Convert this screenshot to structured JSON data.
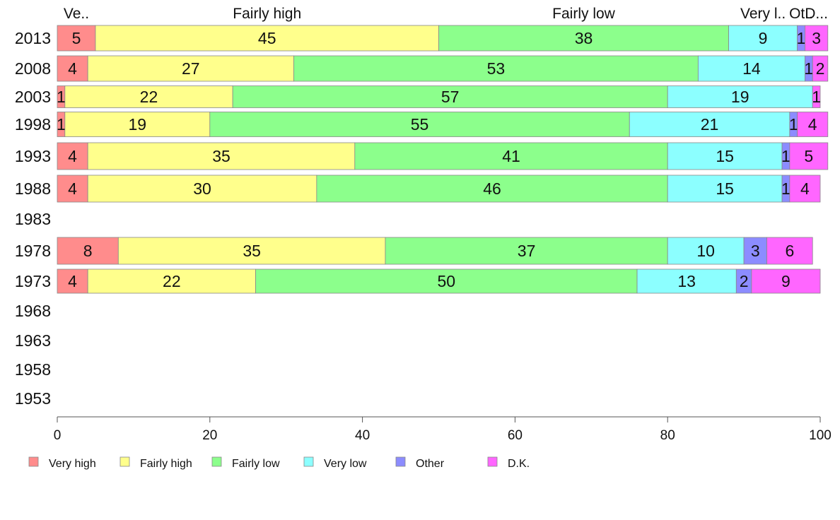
{
  "chart_data": {
    "type": "bar",
    "orientation": "horizontal",
    "stacked": true,
    "categories": [
      "2013",
      "2008",
      "2003",
      "1998",
      "1993",
      "1988",
      "1983",
      "1978",
      "1973",
      "1968",
      "1963",
      "1958",
      "1953"
    ],
    "series": [
      {
        "name": "Very high",
        "color": "#ff8c8c",
        "values": [
          5,
          4,
          1,
          1,
          4,
          4,
          null,
          8,
          4,
          null,
          null,
          null,
          null
        ]
      },
      {
        "name": "Fairly high",
        "color": "#ffff8c",
        "values": [
          45,
          27,
          22,
          19,
          35,
          30,
          null,
          35,
          22,
          null,
          null,
          null,
          null
        ]
      },
      {
        "name": "Fairly low",
        "color": "#8cff8c",
        "values": [
          38,
          53,
          57,
          55,
          41,
          46,
          null,
          37,
          50,
          null,
          null,
          null,
          null
        ]
      },
      {
        "name": "Very low",
        "color": "#8cffff",
        "values": [
          9,
          14,
          19,
          21,
          15,
          15,
          null,
          10,
          13,
          null,
          null,
          null,
          null
        ]
      },
      {
        "name": "Other",
        "color": "#8c8cff",
        "values": [
          1,
          1,
          0,
          1,
          1,
          1,
          null,
          3,
          2,
          null,
          null,
          null,
          null
        ]
      },
      {
        "name": "D.K.",
        "color": "#ff66ff",
        "values": [
          3,
          2,
          1,
          4,
          5,
          4,
          null,
          6,
          9,
          null,
          null,
          null,
          null
        ]
      }
    ],
    "top_labels": [
      "Ve..",
      "Fairly high",
      "Fairly low",
      "Very l..",
      "Ot..",
      "D..."
    ],
    "xlim": [
      0,
      100
    ],
    "xticks": [
      0,
      20,
      40,
      60,
      80,
      100
    ],
    "grid": false,
    "legend": "bottom"
  }
}
